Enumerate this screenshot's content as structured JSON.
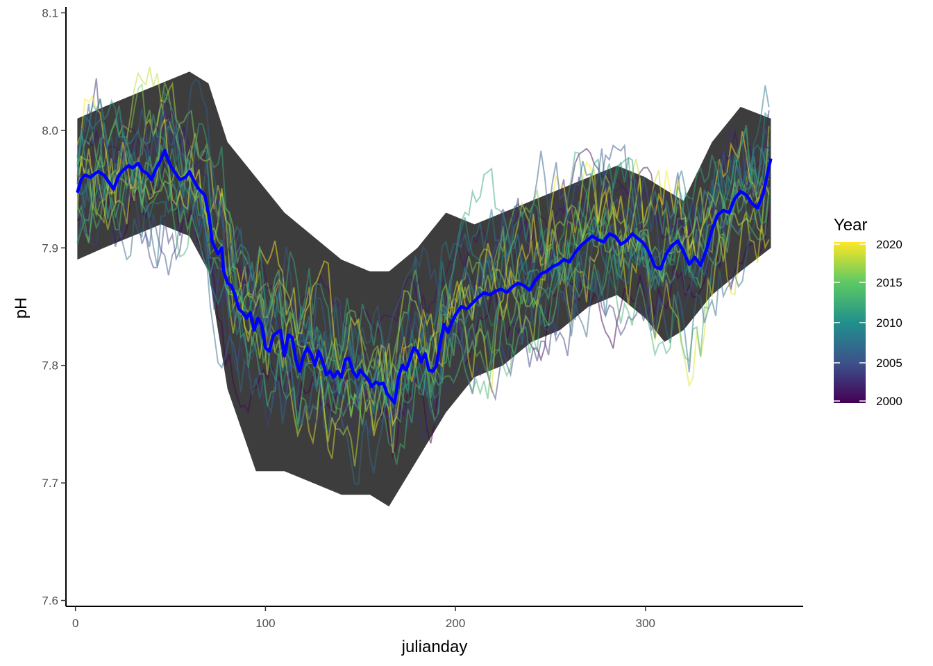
{
  "chart_data": {
    "type": "line",
    "xlabel": "julianday",
    "ylabel": "pH",
    "xlim": [
      -5,
      383
    ],
    "ylim": [
      7.595,
      8.105
    ],
    "x_ticks": [
      0,
      100,
      200,
      300
    ],
    "x_tick_labels": [
      "0",
      "100",
      "200",
      "300"
    ],
    "y_ticks": [
      7.6,
      7.7,
      7.8,
      7.9,
      8.0,
      8.1
    ],
    "y_tick_labels": [
      "7.6",
      "7.7",
      "7.8",
      "7.9",
      "8.0",
      "8.1"
    ],
    "grid": false,
    "legend": {
      "title": "Year",
      "placement": "right",
      "type": "colorbar",
      "range": [
        2000,
        2020
      ],
      "breaks": [
        2000,
        2005,
        2010,
        2015,
        2020
      ],
      "break_labels": [
        "2000",
        "2005",
        "2010",
        "2015",
        "2020"
      ],
      "palette": [
        "#440154",
        "#3b528b",
        "#21908c",
        "#5dc963",
        "#fde725"
      ]
    },
    "yearly_lines": {
      "years": [
        2000,
        2001,
        2002,
        2003,
        2004,
        2005,
        2006,
        2007,
        2008,
        2009,
        2010,
        2011,
        2012,
        2013,
        2014,
        2015,
        2016,
        2017,
        2018,
        2019,
        2020
      ],
      "x_range": [
        1,
        366
      ],
      "description_free_note": ""
    },
    "ribbon": {
      "color": "#222222",
      "x": [
        1,
        15,
        30,
        45,
        60,
        70,
        80,
        95,
        110,
        125,
        140,
        155,
        165,
        180,
        195,
        210,
        225,
        240,
        255,
        270,
        285,
        300,
        310,
        320,
        335,
        350,
        366
      ],
      "lower": [
        7.89,
        7.9,
        7.91,
        7.92,
        7.91,
        7.88,
        7.78,
        7.71,
        7.71,
        7.7,
        7.69,
        7.69,
        7.68,
        7.72,
        7.76,
        7.79,
        7.8,
        7.82,
        7.83,
        7.85,
        7.86,
        7.84,
        7.82,
        7.83,
        7.86,
        7.88,
        7.9
      ],
      "upper": [
        8.01,
        8.02,
        8.03,
        8.04,
        8.05,
        8.04,
        7.99,
        7.96,
        7.93,
        7.91,
        7.89,
        7.88,
        7.88,
        7.9,
        7.93,
        7.92,
        7.93,
        7.94,
        7.95,
        7.96,
        7.97,
        7.96,
        7.95,
        7.94,
        7.99,
        8.02,
        8.01
      ]
    },
    "series": [
      {
        "color": "#0000ff",
        "x": [
          1,
          3,
          5,
          8,
          10,
          12,
          15,
          18,
          20,
          23,
          25,
          28,
          30,
          33,
          35,
          38,
          40,
          42,
          45,
          47,
          50,
          52,
          55,
          58,
          60,
          63,
          65,
          68,
          70,
          72,
          75,
          77,
          78,
          80,
          82,
          84,
          86,
          88,
          90,
          92,
          94,
          96,
          98,
          100,
          102,
          104,
          106,
          108,
          110,
          112,
          114,
          116,
          118,
          120,
          122,
          124,
          126,
          128,
          130,
          132,
          134,
          136,
          138,
          140,
          142,
          144,
          146,
          148,
          150,
          152,
          154,
          156,
          158,
          160,
          162,
          164,
          166,
          168,
          170,
          172,
          174,
          176,
          178,
          180,
          182,
          184,
          186,
          188,
          190,
          192,
          194,
          196,
          198,
          200,
          203,
          206,
          209,
          212,
          215,
          218,
          221,
          224,
          227,
          230,
          233,
          236,
          239,
          242,
          245,
          248,
          251,
          254,
          257,
          260,
          263,
          266,
          269,
          272,
          275,
          278,
          281,
          284,
          287,
          290,
          293,
          296,
          299,
          302,
          305,
          308,
          311,
          314,
          317,
          320,
          323,
          326,
          329,
          332,
          335,
          338,
          341,
          344,
          347,
          350,
          353,
          356,
          359,
          362,
          364,
          366
        ],
        "y": [
          7.947,
          7.958,
          7.962,
          7.96,
          7.963,
          7.965,
          7.962,
          7.955,
          7.95,
          7.962,
          7.966,
          7.97,
          7.968,
          7.972,
          7.966,
          7.963,
          7.958,
          7.966,
          7.975,
          7.983,
          7.97,
          7.965,
          7.958,
          7.96,
          7.965,
          7.955,
          7.95,
          7.945,
          7.93,
          7.905,
          7.895,
          7.9,
          7.88,
          7.87,
          7.868,
          7.86,
          7.848,
          7.845,
          7.84,
          7.845,
          7.83,
          7.84,
          7.835,
          7.815,
          7.812,
          7.825,
          7.828,
          7.83,
          7.808,
          7.826,
          7.824,
          7.805,
          7.795,
          7.808,
          7.815,
          7.81,
          7.8,
          7.812,
          7.804,
          7.792,
          7.795,
          7.79,
          7.795,
          7.79,
          7.805,
          7.806,
          7.795,
          7.79,
          7.796,
          7.792,
          7.788,
          7.782,
          7.786,
          7.784,
          7.785,
          7.776,
          7.772,
          7.768,
          7.79,
          7.8,
          7.796,
          7.805,
          7.815,
          7.812,
          7.803,
          7.81,
          7.796,
          7.795,
          7.8,
          7.82,
          7.835,
          7.828,
          7.836,
          7.843,
          7.85,
          7.848,
          7.853,
          7.858,
          7.862,
          7.86,
          7.863,
          7.865,
          7.862,
          7.867,
          7.87,
          7.868,
          7.864,
          7.872,
          7.878,
          7.88,
          7.884,
          7.886,
          7.89,
          7.888,
          7.896,
          7.902,
          7.906,
          7.91,
          7.907,
          7.905,
          7.912,
          7.91,
          7.903,
          7.906,
          7.912,
          7.908,
          7.904,
          7.896,
          7.884,
          7.882,
          7.895,
          7.902,
          7.906,
          7.897,
          7.886,
          7.892,
          7.885,
          7.898,
          7.915,
          7.928,
          7.932,
          7.93,
          7.942,
          7.948,
          7.945,
          7.938,
          7.934,
          7.946,
          7.962,
          7.976
        ]
      }
    ]
  }
}
